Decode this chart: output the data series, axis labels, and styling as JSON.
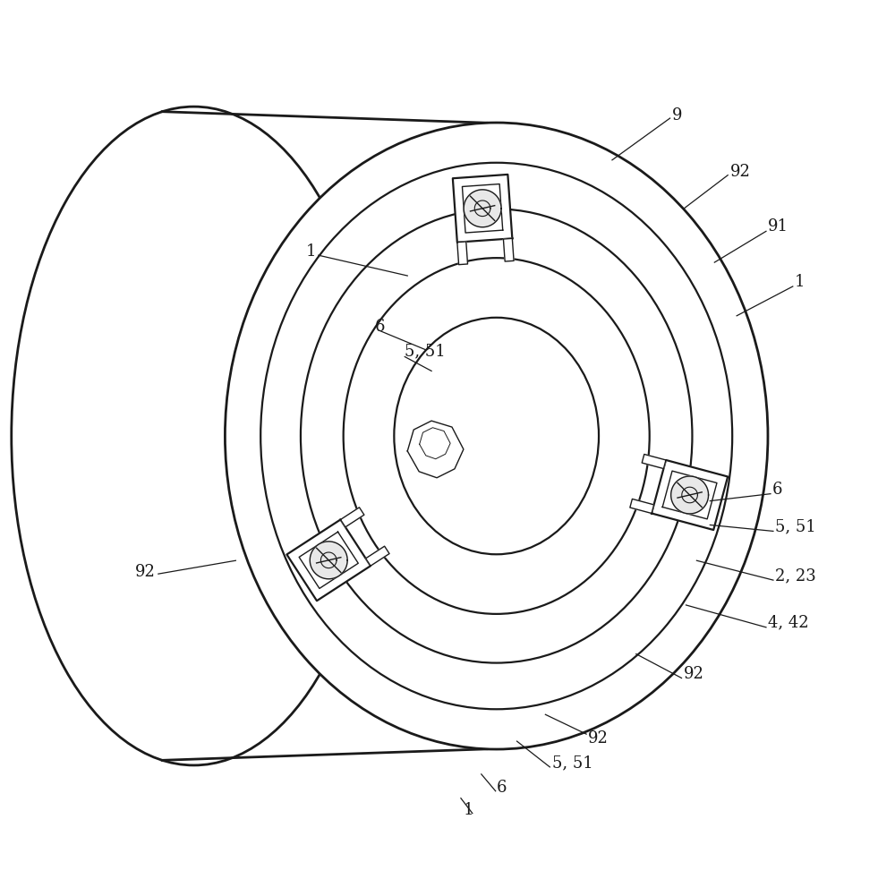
{
  "bg_color": "#ffffff",
  "line_color": "#1a1a1a",
  "lw_main": 1.6,
  "lw_thin": 1.0,
  "lw_thick": 2.0,
  "fig_width": 10.0,
  "fig_height": 9.82,
  "font_size": 13
}
